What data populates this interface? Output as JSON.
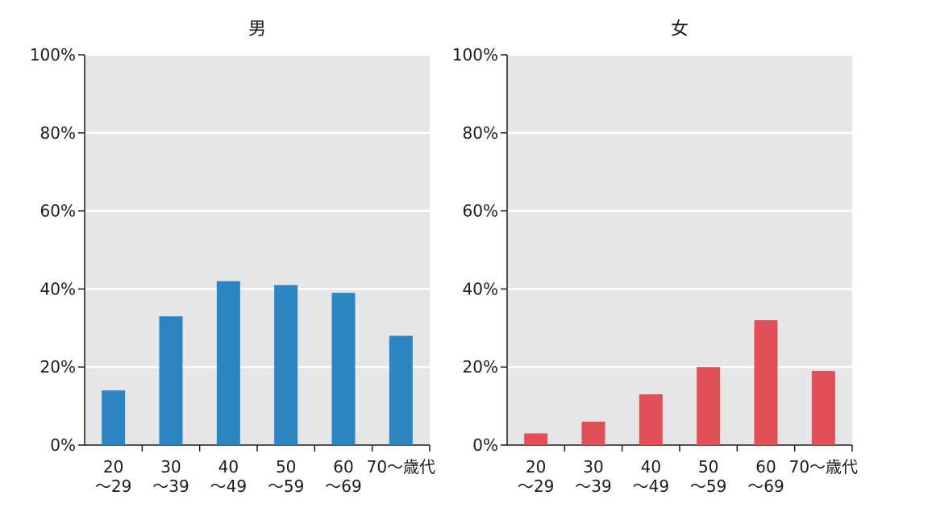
{
  "chart_data": [
    {
      "type": "bar",
      "title": "男",
      "categories": [
        [
          "20",
          "～29"
        ],
        [
          "30",
          "～39"
        ],
        [
          "40",
          "～49"
        ],
        [
          "50",
          "～59"
        ],
        [
          "60",
          "～69"
        ],
        [
          "70～歳代"
        ]
      ],
      "values": [
        14,
        33,
        42,
        41,
        39,
        28
      ],
      "ylim": [
        0,
        100
      ],
      "yticks": [
        "0%",
        "20%",
        "40%",
        "60%",
        "80%",
        "100%"
      ],
      "color": "#2c85c3",
      "grid": true,
      "plot_background": "#e6e6e9",
      "value_unit": "%"
    },
    {
      "type": "bar",
      "title": "女",
      "categories": [
        [
          "20",
          "～29"
        ],
        [
          "30",
          "～39"
        ],
        [
          "40",
          "～49"
        ],
        [
          "50",
          "～59"
        ],
        [
          "60",
          "～69"
        ],
        [
          "70～歳代"
        ]
      ],
      "values": [
        3,
        6,
        13,
        20,
        32,
        19
      ],
      "ylim": [
        0,
        100
      ],
      "yticks": [
        "0%",
        "20%",
        "40%",
        "60%",
        "80%",
        "100%"
      ],
      "color": "#e05056",
      "grid": true,
      "plot_background": "#e6e6e9",
      "value_unit": "%"
    }
  ]
}
